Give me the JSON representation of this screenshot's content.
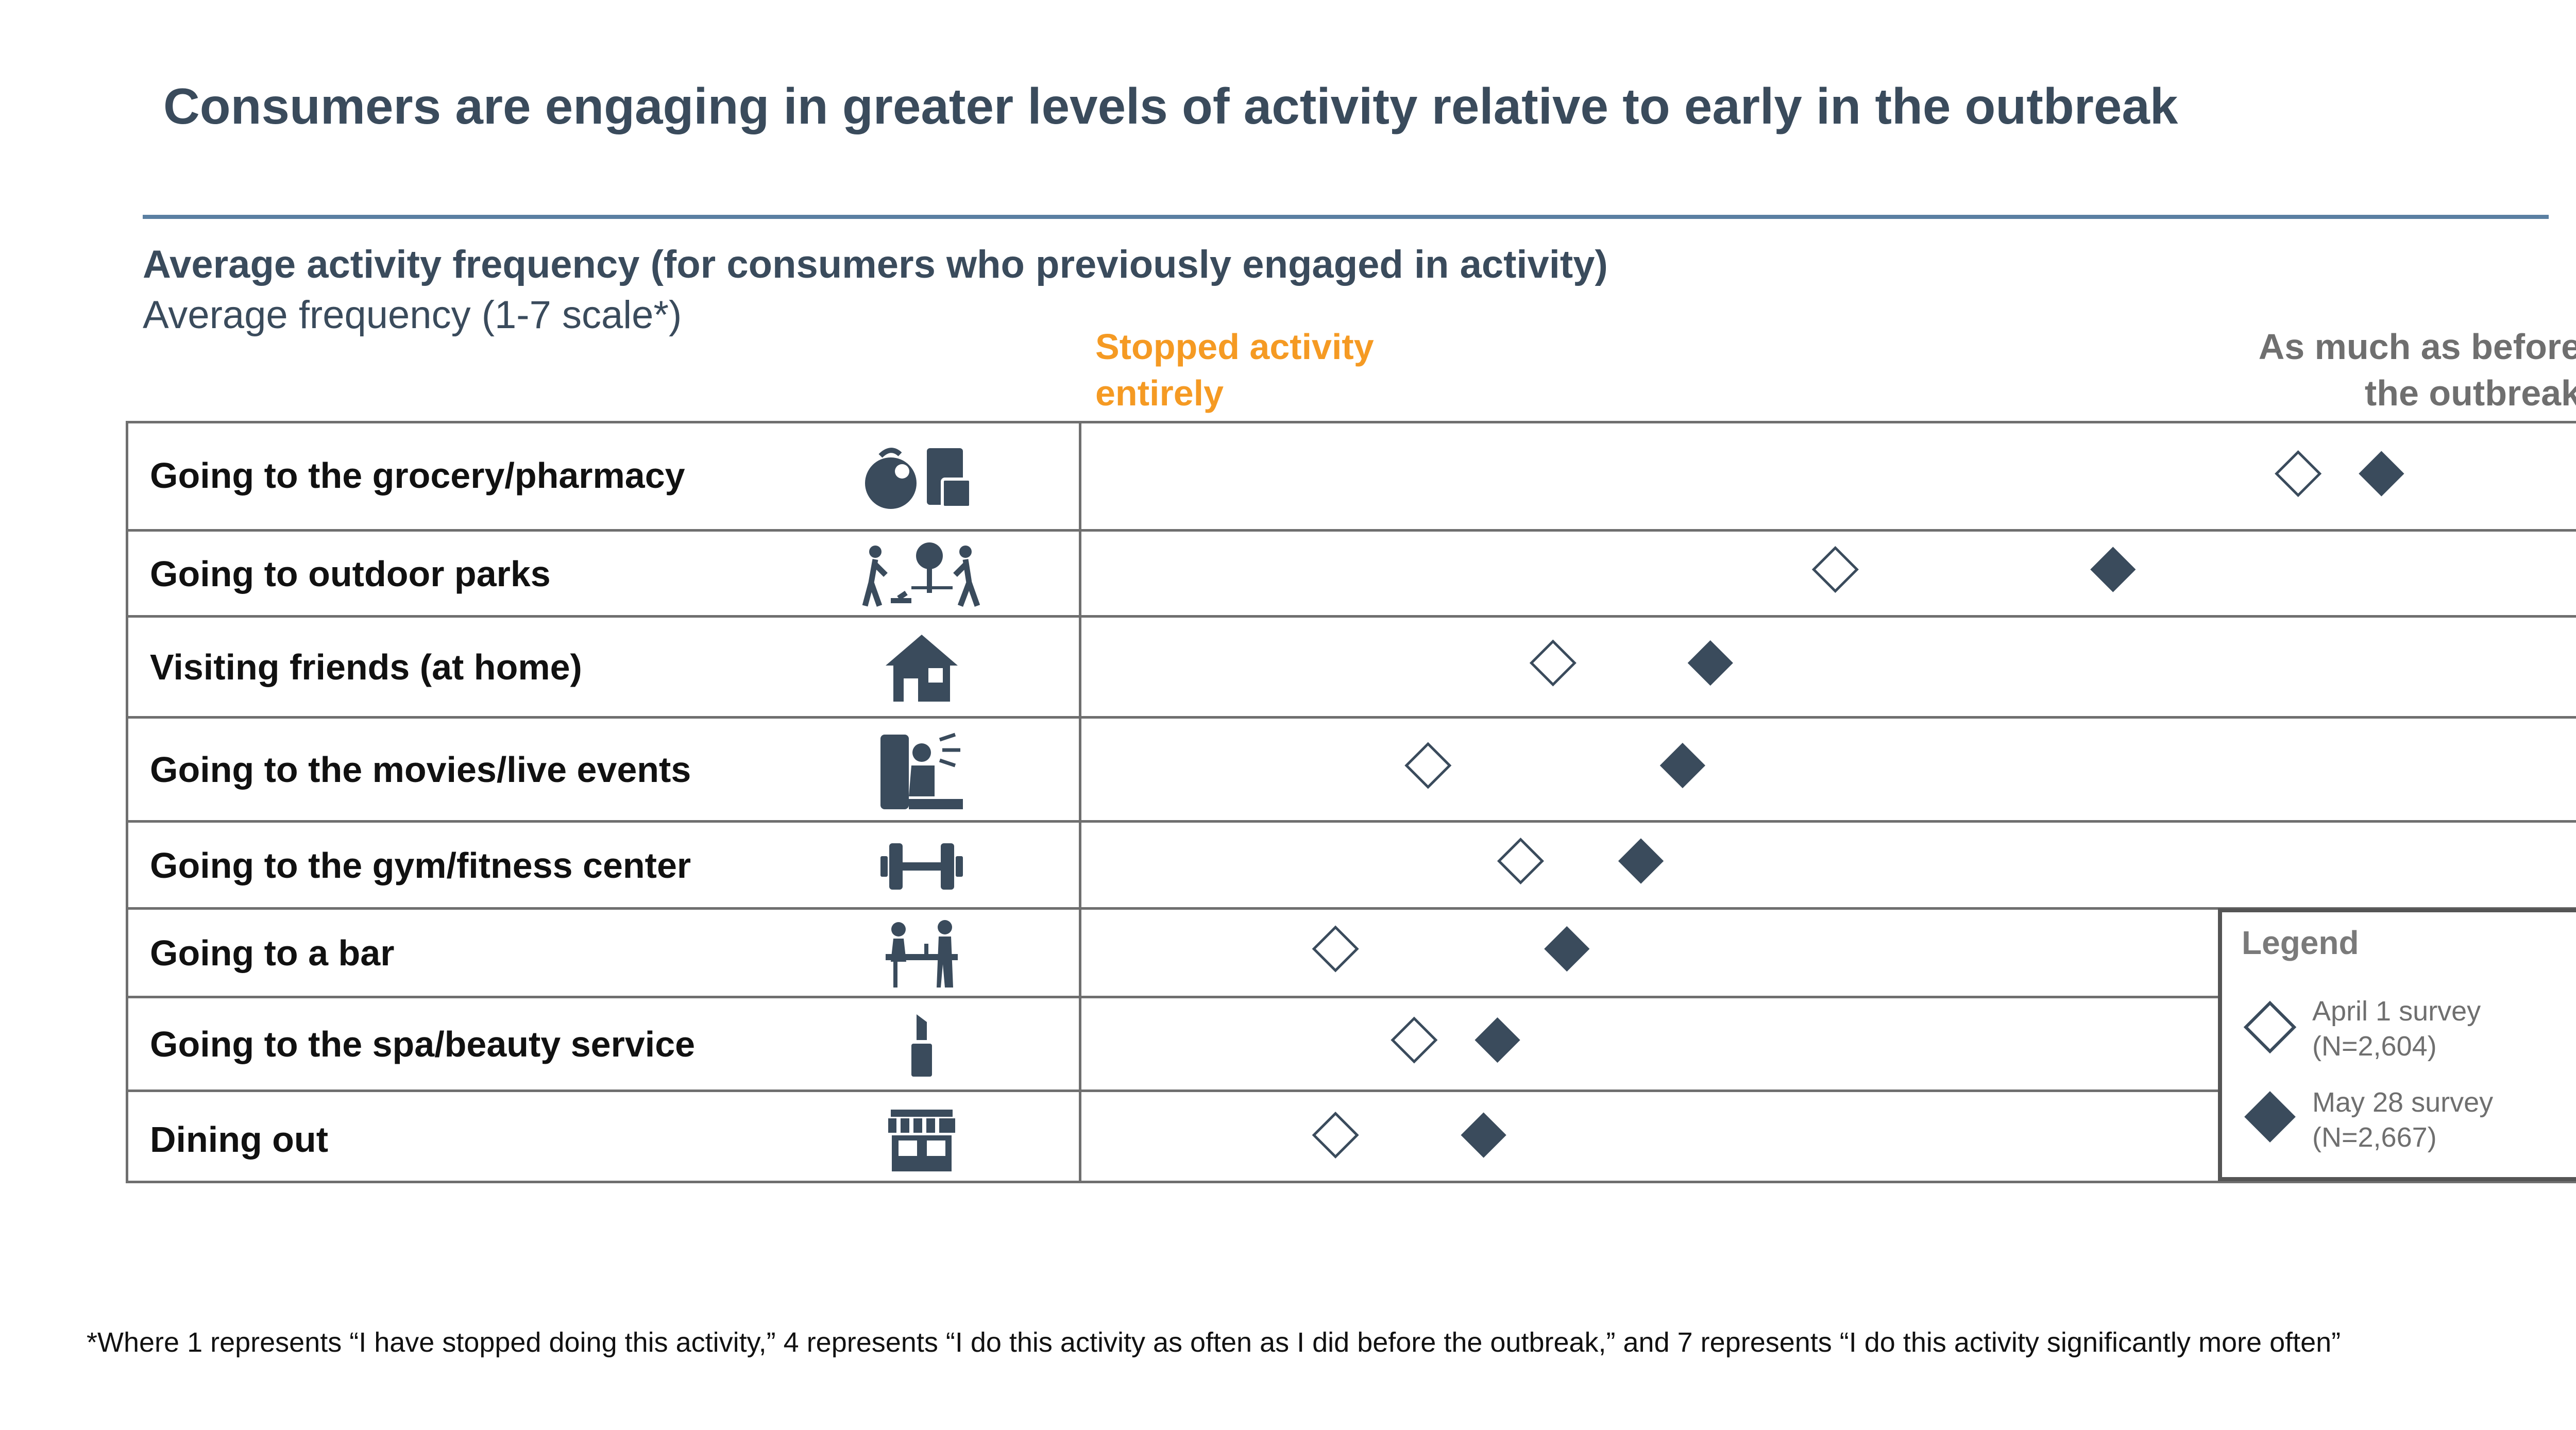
{
  "title": "Consumers are engaging in greater levels of activity relative to early in the outbreak",
  "subtitle": "Average activity frequency (for consumers who previously engaged in activity)",
  "subtitle2": "Average frequency (1-7 scale*)",
  "scale_labels": {
    "left_line1": "Stopped activity",
    "left_line2": "entirely",
    "right_line1": "As much as before",
    "right_line2": "the outbreak"
  },
  "legend": {
    "title": "Legend",
    "april_line1": "April 1 survey",
    "april_line2": "(N=2,604)",
    "may_line1": "May 28 survey",
    "may_line2": "(N=2,667)"
  },
  "footnote": "*Where 1 represents “I have stopped doing this activity,” 4 represents “I do this activity as often as I did before the outbreak,” and 7 represents “I do this activity significantly more often”",
  "colors": {
    "title": "#3a4b5c",
    "accent_orange": "#f59a23",
    "marker": "#3a4b5c",
    "grid": "#6f6f6f"
  },
  "chart_data": {
    "type": "scatter",
    "orientation": "horizontal",
    "xlim": [
      1,
      4
    ],
    "categories": [
      "Going to the grocery/pharmacy",
      "Going to outdoor parks",
      "Visiting friends (at home)",
      "Going to the movies/live events",
      "Going to the gym/fitness center",
      "Going to a bar",
      "Going to the spa/beauty service",
      "Dining out"
    ],
    "icons": [
      "grocery-icon",
      "park-icon",
      "house-icon",
      "movie-icon",
      "dumbbell-icon",
      "bar-icon",
      "lipstick-icon",
      "storefront-icon"
    ],
    "series": [
      {
        "name": "April 1 survey",
        "marker": "hollow-diamond",
        "values": [
          3.6,
          2.6,
          1.99,
          1.72,
          1.92,
          1.52,
          1.69,
          1.52
        ]
      },
      {
        "name": "May 28 survey",
        "marker": "filled-diamond",
        "values": [
          3.78,
          3.2,
          2.33,
          2.27,
          2.18,
          2.02,
          1.87,
          1.84
        ]
      }
    ]
  }
}
